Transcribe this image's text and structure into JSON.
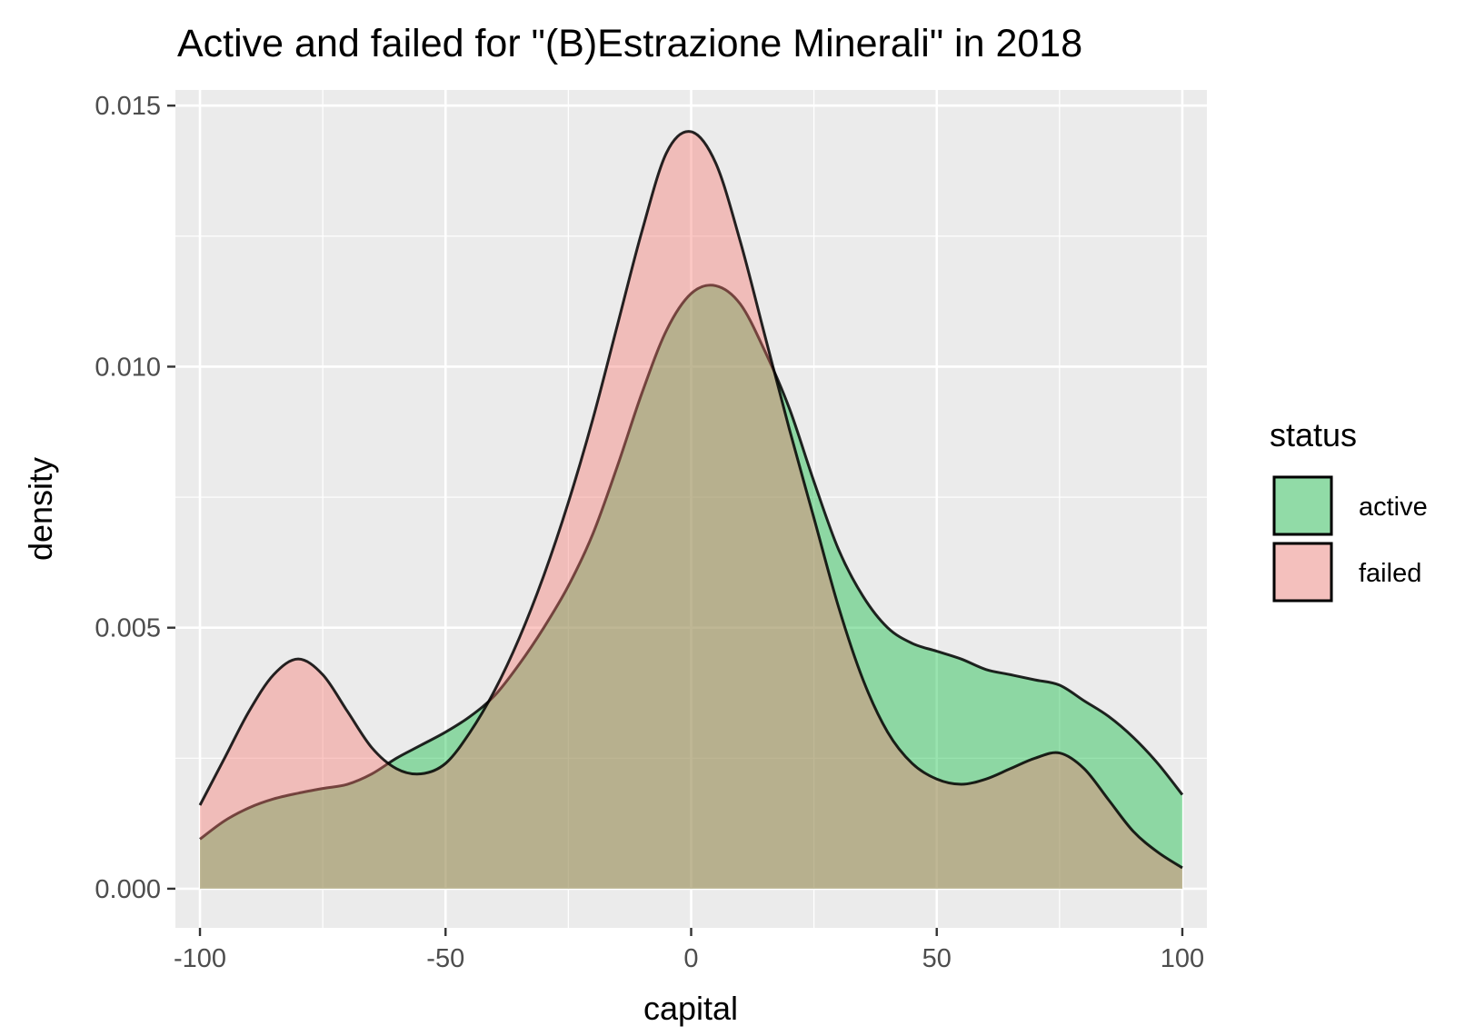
{
  "chart_data": {
    "type": "area",
    "title": "Active and failed for \"(B)Estrazione Minerali\" in 2018",
    "xlabel": "capital",
    "ylabel": "density",
    "xlim": [
      -105,
      105
    ],
    "ylim": [
      -0.00075,
      0.0153
    ],
    "x_ticks": [
      -100,
      -50,
      0,
      50,
      100
    ],
    "x_tick_labels": [
      "-100",
      "-50",
      "0",
      "50",
      "100"
    ],
    "y_ticks": [
      0.0,
      0.005,
      0.01,
      0.015
    ],
    "y_tick_labels": [
      "0.000",
      "0.005",
      "0.010",
      "0.015"
    ],
    "grid": true,
    "legend": {
      "title": "status",
      "placement": "right"
    },
    "series": [
      {
        "name": "active",
        "color": "#00BA38",
        "x": [
          -100,
          -95,
          -90,
          -85,
          -80,
          -75,
          -70,
          -65,
          -60,
          -55,
          -50,
          -45,
          -40,
          -35,
          -30,
          -25,
          -20,
          -15,
          -10,
          -5,
          0,
          5,
          10,
          15,
          20,
          25,
          30,
          35,
          40,
          45,
          50,
          55,
          60,
          65,
          70,
          75,
          80,
          85,
          90,
          95,
          100
        ],
        "y": [
          0.00095,
          0.0013,
          0.00155,
          0.00172,
          0.00183,
          0.00192,
          0.002,
          0.0022,
          0.0025,
          0.00275,
          0.003,
          0.0033,
          0.0037,
          0.0043,
          0.005,
          0.0058,
          0.0068,
          0.0081,
          0.0095,
          0.0107,
          0.0114,
          0.01155,
          0.0112,
          0.0103,
          0.0092,
          0.0078,
          0.0065,
          0.0056,
          0.005,
          0.0047,
          0.00455,
          0.0044,
          0.0042,
          0.0041,
          0.004,
          0.0039,
          0.0036,
          0.0033,
          0.0029,
          0.0024,
          0.0018
        ]
      },
      {
        "name": "failed",
        "color": "#F8766D",
        "x": [
          -100,
          -95,
          -90,
          -85,
          -80,
          -75,
          -70,
          -65,
          -60,
          -55,
          -50,
          -45,
          -40,
          -35,
          -30,
          -25,
          -20,
          -15,
          -10,
          -5,
          0,
          5,
          10,
          15,
          20,
          25,
          30,
          35,
          40,
          45,
          50,
          55,
          60,
          65,
          70,
          75,
          80,
          85,
          90,
          95,
          100
        ],
        "y": [
          0.0016,
          0.0025,
          0.0034,
          0.0041,
          0.0044,
          0.0041,
          0.0034,
          0.0027,
          0.0023,
          0.0022,
          0.0024,
          0.003,
          0.0038,
          0.0048,
          0.006,
          0.0074,
          0.009,
          0.0108,
          0.0126,
          0.0141,
          0.0145,
          0.0139,
          0.0124,
          0.0106,
          0.0088,
          0.0071,
          0.0054,
          0.004,
          0.003,
          0.0024,
          0.0021,
          0.002,
          0.0021,
          0.0023,
          0.0025,
          0.0026,
          0.0023,
          0.0017,
          0.0011,
          0.0007,
          0.0004
        ]
      }
    ]
  }
}
